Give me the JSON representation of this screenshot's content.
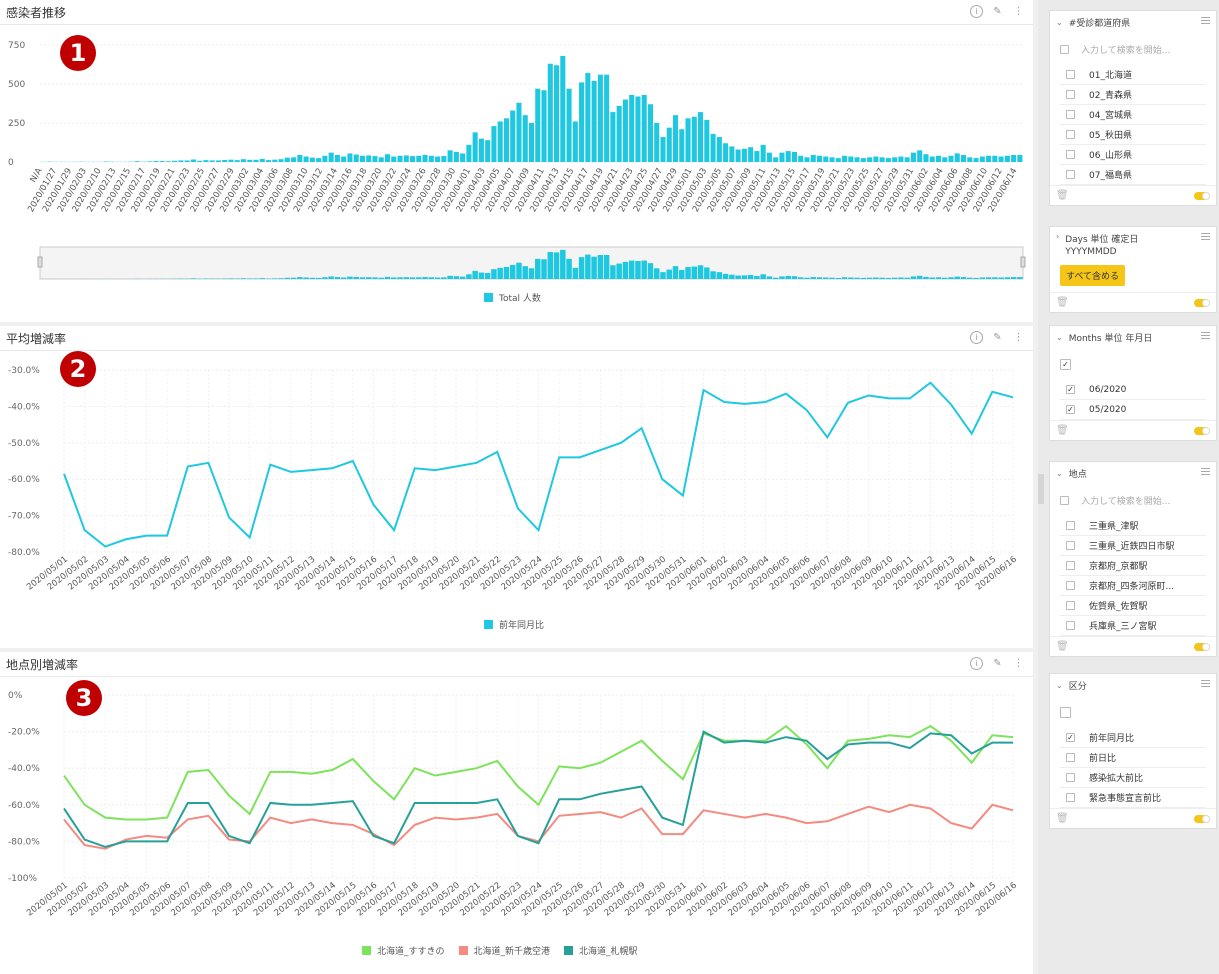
{
  "panels": [
    {
      "title": "感染者推移",
      "badge": "1",
      "legend": [
        "Total 人数"
      ]
    },
    {
      "title": "平均増減率",
      "badge": "2",
      "legend": [
        "前年同月比"
      ]
    },
    {
      "title": "地点別増減率",
      "badge": "3",
      "legend": [
        "北海道_すすきの",
        "北海道_新千歳空港",
        "北海道_札幌駅"
      ]
    }
  ],
  "colors": {
    "cyan": "#1ec8e0",
    "green": "#7de35a",
    "salmon": "#f48a80",
    "teal": "#27a09a",
    "badge": "#c00000",
    "yellow": "#f5c518"
  },
  "chart_data": [
    {
      "type": "bar",
      "title": "感染者推移",
      "x_first": "N/A",
      "x_labels": [
        "N/A",
        "2020/01/27",
        "2020/01/29",
        "2020/02/03",
        "2020/02/10",
        "2020/02/13",
        "2020/02/15",
        "2020/02/17",
        "2020/02/19",
        "2020/02/21",
        "2020/02/23",
        "2020/02/25",
        "2020/02/27",
        "2020/02/29",
        "2020/03/02",
        "2020/03/04",
        "2020/03/06",
        "2020/03/08",
        "2020/03/10",
        "2020/03/12",
        "2020/03/14",
        "2020/03/16",
        "2020/03/18",
        "2020/03/20",
        "2020/03/22",
        "2020/03/24",
        "2020/03/26",
        "2020/03/28",
        "2020/03/30",
        "2020/04/01",
        "2020/04/03",
        "2020/04/05",
        "2020/04/07",
        "2020/04/09",
        "2020/04/11",
        "2020/04/13",
        "2020/04/15",
        "2020/04/17",
        "2020/04/19",
        "2020/04/21",
        "2020/04/23",
        "2020/04/25",
        "2020/04/27",
        "2020/04/29",
        "2020/05/01",
        "2020/05/03",
        "2020/05/05",
        "2020/05/07",
        "2020/05/09",
        "2020/05/11",
        "2020/05/13",
        "2020/05/15",
        "2020/05/17",
        "2020/05/19",
        "2020/05/21",
        "2020/05/23",
        "2020/05/25",
        "2020/05/27",
        "2020/05/29",
        "2020/05/31",
        "2020/06/02",
        "2020/06/04",
        "2020/06/06",
        "2020/06/08",
        "2020/06/10",
        "2020/06/12",
        "2020/06/14"
      ],
      "y_ticks": [
        "750",
        "500",
        "250",
        "0"
      ],
      "ylim": [
        0,
        750
      ],
      "series": [
        {
          "name": "Total 人数",
          "values": [
            1,
            2,
            1,
            1,
            1,
            1,
            2,
            1,
            1,
            1,
            3,
            2,
            1,
            1,
            2,
            5,
            2,
            4,
            6,
            6,
            5,
            8,
            10,
            10,
            16,
            8,
            12,
            10,
            10,
            13,
            15,
            12,
            18,
            14,
            14,
            20,
            12,
            15,
            18,
            28,
            30,
            45,
            35,
            28,
            25,
            40,
            60,
            45,
            35,
            55,
            48,
            40,
            42,
            38,
            30,
            50,
            35,
            40,
            42,
            38,
            40,
            45,
            40,
            35,
            38,
            75,
            65,
            55,
            110,
            190,
            150,
            140,
            230,
            260,
            280,
            330,
            380,
            300,
            250,
            470,
            460,
            630,
            620,
            680,
            470,
            260,
            510,
            570,
            520,
            560,
            560,
            320,
            360,
            400,
            430,
            420,
            430,
            370,
            250,
            160,
            220,
            300,
            210,
            280,
            290,
            320,
            270,
            180,
            160,
            120,
            100,
            80,
            85,
            95,
            70,
            110,
            60,
            30,
            60,
            70,
            65,
            40,
            30,
            45,
            40,
            35,
            30,
            25,
            40,
            35,
            30,
            25,
            30,
            35,
            30,
            25,
            30,
            35,
            30,
            60,
            75,
            50,
            35,
            40,
            30,
            40,
            55,
            45,
            30,
            25,
            35,
            40,
            40,
            35,
            40,
            45,
            45
          ]
        }
      ]
    },
    {
      "type": "line",
      "title": "平均増減率",
      "x": [
        "2020/05/01",
        "2020/05/02",
        "2020/05/03",
        "2020/05/04",
        "2020/05/05",
        "2020/05/06",
        "2020/05/07",
        "2020/05/08",
        "2020/05/09",
        "2020/05/10",
        "2020/05/11",
        "2020/05/12",
        "2020/05/13",
        "2020/05/14",
        "2020/05/15",
        "2020/05/16",
        "2020/05/17",
        "2020/05/18",
        "2020/05/19",
        "2020/05/20",
        "2020/05/21",
        "2020/05/22",
        "2020/05/23",
        "2020/05/24",
        "2020/05/25",
        "2020/05/26",
        "2020/05/27",
        "2020/05/28",
        "2020/05/29",
        "2020/05/30",
        "2020/05/31",
        "2020/06/01",
        "2020/06/02",
        "2020/06/03",
        "2020/06/04",
        "2020/06/05",
        "2020/06/06",
        "2020/06/07",
        "2020/06/08",
        "2020/06/09",
        "2020/06/10",
        "2020/06/11",
        "2020/06/12",
        "2020/06/13",
        "2020/06/14",
        "2020/06/15",
        "2020/06/16"
      ],
      "y_ticks": [
        "-30.0%",
        "-40.0%",
        "-50.0%",
        "-60.0%",
        "-70.0%",
        "-80.0%"
      ],
      "ylim": [
        -80,
        -30
      ],
      "series": [
        {
          "name": "前年同月比",
          "values": [
            -58.5,
            -74,
            -78.5,
            -76.5,
            -75.5,
            -75.5,
            -56.5,
            -55.5,
            -70.5,
            -76,
            -56,
            -58,
            -57.5,
            -57,
            -55,
            -67,
            -74,
            -57,
            -57.5,
            -56.5,
            -55.5,
            -52.5,
            -68,
            -74,
            -54,
            -54,
            -52,
            -50,
            -46,
            -60,
            -64.5,
            -35.5,
            -38.8,
            -39.3,
            -38.8,
            -36.5,
            -41,
            -48.5,
            -39,
            -37,
            -37.8,
            -37.8,
            -33.5,
            -39.5,
            -47.5,
            -36,
            -37.5
          ]
        }
      ]
    },
    {
      "type": "line",
      "title": "地点別増減率",
      "x": [
        "2020/05/01",
        "2020/05/02",
        "2020/05/03",
        "2020/05/04",
        "2020/05/05",
        "2020/05/06",
        "2020/05/07",
        "2020/05/08",
        "2020/05/09",
        "2020/05/10",
        "2020/05/11",
        "2020/05/12",
        "2020/05/13",
        "2020/05/14",
        "2020/05/15",
        "2020/05/16",
        "2020/05/17",
        "2020/05/18",
        "2020/05/19",
        "2020/05/20",
        "2020/05/21",
        "2020/05/22",
        "2020/05/23",
        "2020/05/24",
        "2020/05/25",
        "2020/05/26",
        "2020/05/27",
        "2020/05/28",
        "2020/05/29",
        "2020/05/30",
        "2020/05/31",
        "2020/06/01",
        "2020/06/02",
        "2020/06/03",
        "2020/06/04",
        "2020/06/05",
        "2020/06/06",
        "2020/06/07",
        "2020/06/08",
        "2020/06/09",
        "2020/06/10",
        "2020/06/11",
        "2020/06/12",
        "2020/06/13",
        "2020/06/14",
        "2020/06/15",
        "2020/06/16"
      ],
      "y_ticks": [
        "0%",
        "-20.0%",
        "-40.0%",
        "-60.0%",
        "-80.0%",
        "-100%"
      ],
      "ylim": [
        -100,
        0
      ],
      "series": [
        {
          "name": "北海道_すすきの",
          "values": [
            -44,
            -60,
            -67,
            -68,
            -68,
            -67,
            -42,
            -41,
            -55,
            -65,
            -42,
            -42,
            -43,
            -41,
            -35,
            -47,
            -57,
            -40,
            -44,
            -42,
            -40,
            -36,
            -50,
            -60,
            -39,
            -40,
            -37,
            -31,
            -25,
            -36,
            -46,
            -21,
            -25,
            -25,
            -25,
            -17,
            -27,
            -40,
            -25,
            -24,
            -22,
            -23,
            -17,
            -25,
            -37,
            -22,
            -23
          ]
        },
        {
          "name": "北海道_新千歳空港",
          "values": [
            -68,
            -82,
            -84,
            -79,
            -77,
            -78,
            -68,
            -66,
            -79,
            -80,
            -67,
            -70,
            -68,
            -70,
            -71,
            -76,
            -82,
            -71,
            -67,
            -68,
            -67,
            -65,
            -77,
            -80,
            -66,
            -65,
            -64,
            -67,
            -62,
            -76,
            -76,
            -63,
            -65,
            -67,
            -65,
            -67,
            -70,
            -69,
            -65,
            -61,
            -64,
            -60,
            -62,
            -70,
            -73,
            -60,
            -63
          ]
        },
        {
          "name": "北海道_札幌駅",
          "values": [
            -62,
            -79,
            -83,
            -80,
            -80,
            -80,
            -59,
            -59,
            -77,
            -81,
            -59,
            -60,
            -60,
            -59,
            -58,
            -77,
            -81,
            -59,
            -59,
            -59,
            -59,
            -57,
            -77,
            -81,
            -57,
            -57,
            -54,
            -52,
            -50,
            -67,
            -71,
            -20,
            -26,
            -25,
            -26,
            -23,
            -25,
            -35,
            -27,
            -26,
            -26,
            -29,
            -21,
            -22,
            -32,
            -26,
            -26
          ]
        }
      ]
    }
  ],
  "sidebar": [
    {
      "title": "#受診都道府県",
      "search_placeholder": "入力して検索を開始...",
      "items": [
        {
          "label": "01_北海道",
          "checked": false
        },
        {
          "label": "02_青森県",
          "checked": false
        },
        {
          "label": "04_宮城県",
          "checked": false
        },
        {
          "label": "05_秋田県",
          "checked": false
        },
        {
          "label": "06_山形県",
          "checked": false
        },
        {
          "label": "07_福島県",
          "checked": false
        }
      ]
    },
    {
      "title": "Days 単位 確定日",
      "subtitle": "YYYYMMDD",
      "button": "すべて含める"
    },
    {
      "title": "Months 単位 年月日",
      "items": [
        {
          "label": "06/2020",
          "checked": true
        },
        {
          "label": "05/2020",
          "checked": true
        }
      ]
    },
    {
      "title": "地点",
      "search_placeholder": "入力して検索を開始...",
      "items": [
        {
          "label": "三重県_津駅",
          "checked": false
        },
        {
          "label": "三重県_近鉄四日市駅",
          "checked": false
        },
        {
          "label": "京都府_京都駅",
          "checked": false
        },
        {
          "label": "京都府_四条河原町...",
          "checked": false
        },
        {
          "label": "佐賀県_佐賀駅",
          "checked": false
        },
        {
          "label": "兵庫県_三ノ宮駅",
          "checked": false
        }
      ]
    },
    {
      "title": "区分",
      "items": [
        {
          "label": "前年同月比",
          "checked": true
        },
        {
          "label": "前日比",
          "checked": false
        },
        {
          "label": "感染拡大前比",
          "checked": false
        },
        {
          "label": "緊急事態宣言前比",
          "checked": false
        }
      ]
    }
  ]
}
